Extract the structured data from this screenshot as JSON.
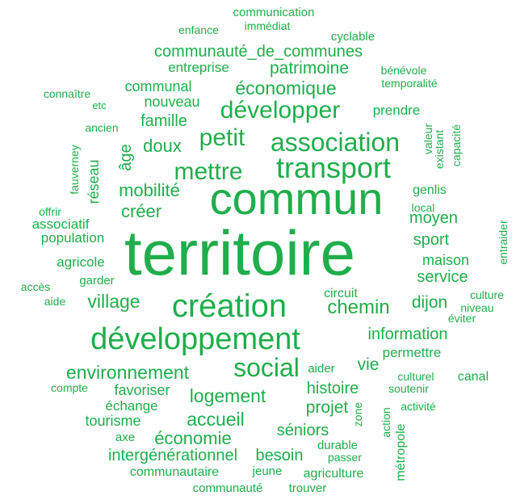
{
  "words": [
    "communication",
    "enfance",
    "immédiat",
    "cyclable",
    "communauté_de_communes",
    "entreprise",
    "patrimoine",
    "bénévole",
    "communal",
    "économique",
    "temporalité",
    "connaître",
    "etc",
    "nouveau",
    "développer",
    "prendre",
    "famille",
    "ancien",
    "valeur",
    "existant",
    "capacité",
    "petit",
    "association",
    "doux",
    "fauverney",
    "âge",
    "réseau",
    "mettre",
    "transport",
    "mobilité",
    "commun",
    "genlis",
    "offrir",
    "créer",
    "local",
    "associatif",
    "moyen",
    "entraider",
    "population",
    "territoire",
    "sport",
    "agricole",
    "maison",
    "accès",
    "garder",
    "service",
    "aide",
    "circuit",
    "culture",
    "village",
    "création",
    "chemin",
    "dijon",
    "niveau",
    "éviter",
    "développement",
    "information",
    "permettre",
    "environnement",
    "social",
    "aider",
    "vie",
    "culturel",
    "canal",
    "compte",
    "favoriser",
    "soutenir",
    "logement",
    "histoire",
    "échange",
    "projet",
    "zone",
    "activité",
    "tourisme",
    "accueil",
    "action",
    "séniors",
    "axe",
    "économie",
    "durable",
    "intergénérationnel",
    "besoin",
    "passer",
    "métropole",
    "communautaire",
    "jeune",
    "agriculture",
    "communauté",
    "trouver"
  ]
}
